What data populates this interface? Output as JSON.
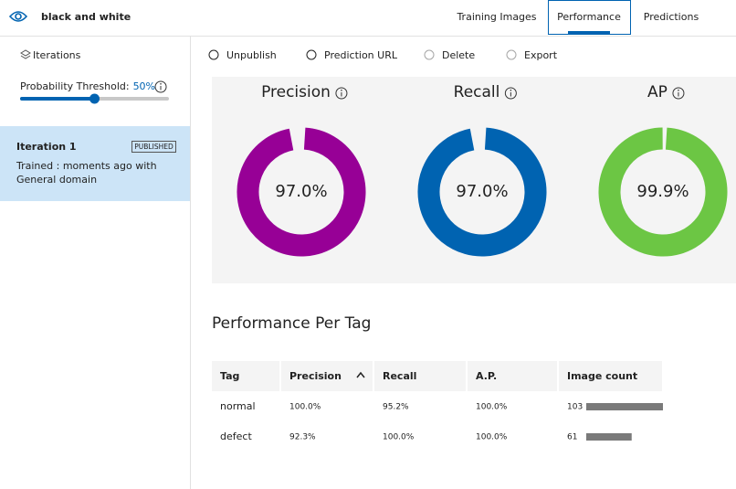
{
  "header": {
    "title": "black and white",
    "tabs": [
      "Training Images",
      "Performance",
      "Predictions"
    ],
    "active_tab": 1
  },
  "sidebar": {
    "heading": "Iterations",
    "threshold": {
      "label": "Probability Threshold:",
      "value": 50,
      "value_label": "50%"
    },
    "iterations": [
      {
        "name": "Iteration 1",
        "badge": "PUBLISHED",
        "lines": [
          "Trained : moments ago with",
          "General domain"
        ]
      }
    ]
  },
  "toolbar": [
    {
      "label": "Unpublish",
      "enabled": true
    },
    {
      "label": "Prediction URL",
      "enabled": true
    },
    {
      "label": "Delete",
      "enabled": false
    },
    {
      "label": "Export",
      "enabled": false
    }
  ],
  "metrics": [
    {
      "name": "Precision",
      "value": 97.0,
      "label": "97.0%",
      "color": "#970096",
      "text_color": "#7a0078"
    },
    {
      "name": "Recall",
      "value": 97.0,
      "label": "97.0%",
      "color": "#0063b1",
      "text_color": "#0a4f8c"
    },
    {
      "name": "AP",
      "value": 99.9,
      "label": "99.9%",
      "color": "#6cc644",
      "text_color": "#3d9a1a"
    }
  ],
  "per_tag": {
    "title": "Performance Per Tag",
    "columns": [
      "Tag",
      "Precision",
      "Recall",
      "A.P.",
      "Image count"
    ],
    "rows": [
      {
        "tag": "normal",
        "precision": "100.0%",
        "recall": "95.2%",
        "ap": "100.0%",
        "image_count": 103
      },
      {
        "tag": "defect",
        "precision": "92.3%",
        "recall": "100.0%",
        "ap": "100.0%",
        "image_count": 61
      }
    ]
  }
}
